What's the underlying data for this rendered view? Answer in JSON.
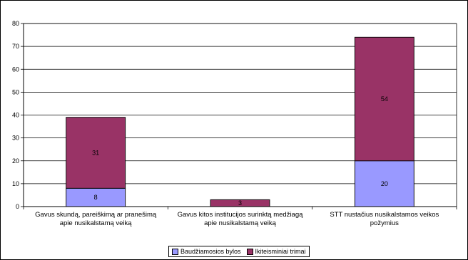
{
  "chart_data": {
    "type": "bar",
    "stacked": true,
    "categories": [
      [
        "Gavus skundą, pareiškimą ar pranešimą",
        "apie nusikalstamą veiką"
      ],
      [
        "Gavus kitos institucijos surinktą medžiagą",
        "apie nusikalstamą veiką"
      ],
      [
        "STT nustačius nusikalstamos veikos",
        "požymius"
      ]
    ],
    "series": [
      {
        "name": "Baudžiamosios bylos",
        "values": [
          8,
          0,
          20
        ],
        "color": "#9999FF"
      },
      {
        "name": "Ikiteisminiai trimai",
        "values": [
          31,
          3,
          54
        ],
        "color": "#993366"
      }
    ],
    "data_labels": [
      [
        "8",
        null,
        "20"
      ],
      [
        "31",
        "3",
        "54"
      ]
    ],
    "ylim": [
      0,
      80
    ],
    "yticks": [
      0,
      10,
      20,
      30,
      40,
      50,
      60,
      70,
      80
    ],
    "grid": true,
    "legend_position": "bottom"
  }
}
